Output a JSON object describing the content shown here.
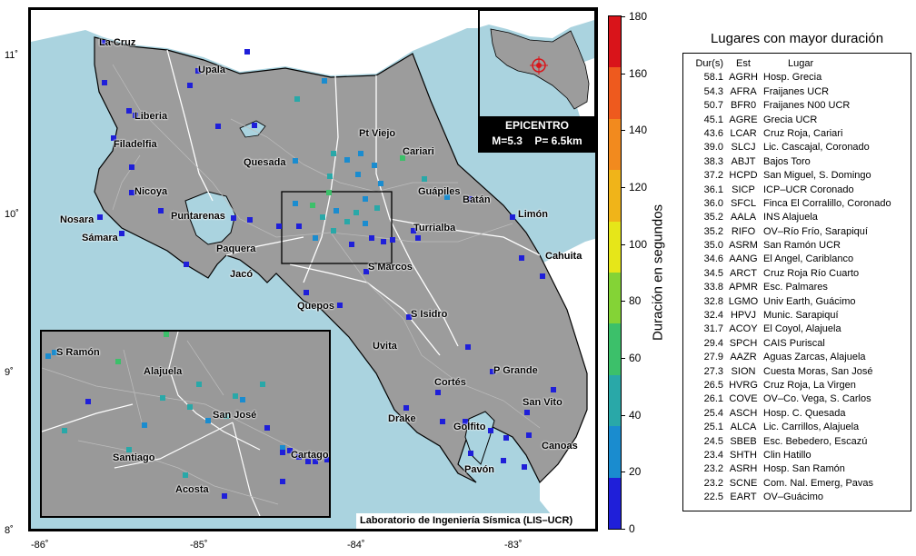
{
  "map": {
    "places": [
      {
        "name": "La Cruz"
      },
      {
        "name": "Upala"
      },
      {
        "name": "Liberia"
      },
      {
        "name": "Filadelfia"
      },
      {
        "name": "Pt Viejo"
      },
      {
        "name": "Cariari"
      },
      {
        "name": "Quesada"
      },
      {
        "name": "Guápiles"
      },
      {
        "name": "Nicoya"
      },
      {
        "name": "Batán"
      },
      {
        "name": "Limón"
      },
      {
        "name": "Nosara"
      },
      {
        "name": "Puntarenas"
      },
      {
        "name": "Turrialba"
      },
      {
        "name": "Sámara"
      },
      {
        "name": "Paquera"
      },
      {
        "name": "Cahuita"
      },
      {
        "name": "S Marcos"
      },
      {
        "name": "Jacó"
      },
      {
        "name": "Quepos"
      },
      {
        "name": "S Isidro"
      },
      {
        "name": "Uvita"
      },
      {
        "name": "P Grande"
      },
      {
        "name": "Cortés"
      },
      {
        "name": "San Vito"
      },
      {
        "name": "Drake"
      },
      {
        "name": "Golfito"
      },
      {
        "name": "Canoas"
      },
      {
        "name": "Pavón"
      }
    ],
    "x_ticks": [
      "-86˚",
      "-85˚",
      "-84˚",
      "-83˚"
    ],
    "y_ticks": [
      "11˚",
      "10˚",
      "9˚",
      "8˚"
    ],
    "land_color": "#9c9c9c",
    "sea_color": "#aad3df"
  },
  "inset_zoom": {
    "places": [
      {
        "name": "S Ramón"
      },
      {
        "name": "Alajuela"
      },
      {
        "name": "San José"
      },
      {
        "name": "Santiago"
      },
      {
        "name": "Cartago"
      },
      {
        "name": "Acosta"
      }
    ]
  },
  "epicenter": {
    "title": "EPICENTRO",
    "magnitude": "M=5.3",
    "depth": "P= 6.5km"
  },
  "credit": "Laboratorio de Ingeniería Sísmica (LIS–UCR)",
  "colorbar": {
    "title": "Duración en segundos",
    "min": 0,
    "max": 180,
    "ticks": [
      "0",
      "20",
      "40",
      "60",
      "80",
      "100",
      "120",
      "140",
      "160",
      "180"
    ],
    "colors": [
      "#1f1fd9",
      "#1a8ccf",
      "#29a8a8",
      "#3cc06a",
      "#84d336",
      "#e6e619",
      "#f0b419",
      "#f28a1e",
      "#ee5a1e",
      "#d9141a"
    ]
  },
  "table": {
    "title": "Lugares con mayor duración",
    "headers": {
      "dur": "Dur(s)",
      "est": "Est",
      "lugar": "Lugar"
    },
    "rows": [
      {
        "dur": "58.1",
        "est": "AGRH",
        "lugar": "Hosp. Grecia"
      },
      {
        "dur": "54.3",
        "est": "AFRA",
        "lugar": "Fraijanes UCR"
      },
      {
        "dur": "50.7",
        "est": "BFR0",
        "lugar": "Fraijanes N00 UCR"
      },
      {
        "dur": "45.1",
        "est": "AGRE",
        "lugar": "Grecia UCR"
      },
      {
        "dur": "43.6",
        "est": "LCAR",
        "lugar": "Cruz Roja, Cariari"
      },
      {
        "dur": "39.0",
        "est": "SLCJ",
        "lugar": "Lic. Cascajal, Coronado"
      },
      {
        "dur": "38.3",
        "est": "ABJT",
        "lugar": "Bajos Toro"
      },
      {
        "dur": "37.2",
        "est": "HCPD",
        "lugar": "San Miguel, S. Domingo"
      },
      {
        "dur": "36.1",
        "est": "SICP",
        "lugar": "ICP–UCR Coronado"
      },
      {
        "dur": "36.0",
        "est": "SFCL",
        "lugar": "Finca El Corralillo, Coronado"
      },
      {
        "dur": "35.2",
        "est": "AALA",
        "lugar": "INS Alajuela"
      },
      {
        "dur": "35.2",
        "est": "RIFO",
        "lugar": "OV–Río Frío, Sarapiquí"
      },
      {
        "dur": "35.0",
        "est": "ASRM",
        "lugar": "San Ramón UCR"
      },
      {
        "dur": "34.6",
        "est": "AANG",
        "lugar": "El Angel, Cariblanco"
      },
      {
        "dur": "34.5",
        "est": "ARCT",
        "lugar": "Cruz Roja Río Cuarto"
      },
      {
        "dur": "33.8",
        "est": "APMR",
        "lugar": "Esc. Palmares"
      },
      {
        "dur": "32.8",
        "est": "LGMO",
        "lugar": "Univ Earth, Guácimo"
      },
      {
        "dur": "32.4",
        "est": "HPVJ",
        "lugar": "Munic. Sarapiquí"
      },
      {
        "dur": "31.7",
        "est": "ACOY",
        "lugar": "El Coyol, Alajuela"
      },
      {
        "dur": "29.4",
        "est": "SPCH",
        "lugar": "CAIS Puriscal"
      },
      {
        "dur": "27.9",
        "est": "AAZR",
        "lugar": "Aguas Zarcas, Alajuela"
      },
      {
        "dur": "27.3",
        "est": "SION",
        "lugar": "Cuesta Moras, San José"
      },
      {
        "dur": "26.5",
        "est": "HVRG",
        "lugar": "Cruz Roja, La Virgen"
      },
      {
        "dur": "26.1",
        "est": "COVE",
        "lugar": "OV–Co. Vega, S. Carlos"
      },
      {
        "dur": "25.4",
        "est": "ASCH",
        "lugar": "Hosp. C. Quesada"
      },
      {
        "dur": "25.1",
        "est": "ALCA",
        "lugar": "Lic. Carrillos, Alajuela"
      },
      {
        "dur": "24.5",
        "est": "SBEB",
        "lugar": "Esc. Bebedero, Escazú"
      },
      {
        "dur": "23.4",
        "est": "SHTH",
        "lugar": "Clin Hatillo"
      },
      {
        "dur": "23.2",
        "est": "ASRH",
        "lugar": "Hosp. San Ramón"
      },
      {
        "dur": "23.2",
        "est": "SCNE",
        "lugar": "Com. Nal. Emerg, Pavas"
      },
      {
        "dur": "22.5",
        "est": "EART",
        "lugar": "OV–Guácimo"
      }
    ]
  }
}
